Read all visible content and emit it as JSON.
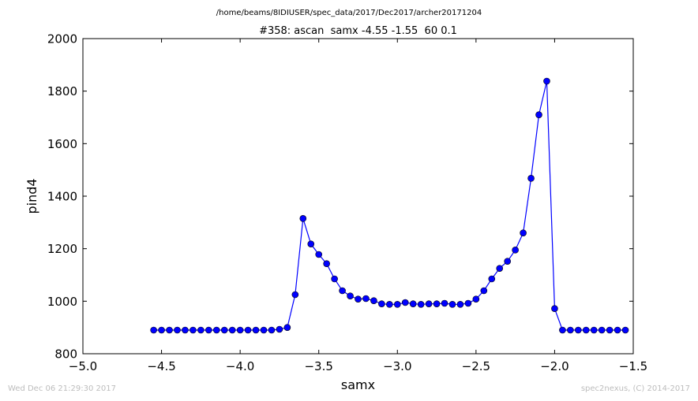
{
  "file_path": "/home/beams/8IDIUSER/spec_data/2017/Dec2017/archer20171204",
  "footer": {
    "timestamp": "Wed Dec 06 21:29:30 2017",
    "credit": "spec2nexus, (C) 2014-2017"
  },
  "chart_data": {
    "type": "line",
    "title": "#358: ascan  samx -4.55 -1.55  60 0.1",
    "xlabel": "samx",
    "ylabel": "pind4",
    "xlim": [
      -5.0,
      -1.5
    ],
    "ylim": [
      800,
      2000
    ],
    "xticks": [
      -5.0,
      -4.5,
      -4.0,
      -3.5,
      -3.0,
      -2.5,
      -2.0,
      -1.5
    ],
    "xtick_labels": [
      "−5.0",
      "−4.5",
      "−4.0",
      "−3.5",
      "−3.0",
      "−2.5",
      "−2.0",
      "−1.5"
    ],
    "yticks": [
      800,
      1000,
      1200,
      1400,
      1600,
      1800,
      2000
    ],
    "ytick_labels": [
      "800",
      "1000",
      "1200",
      "1400",
      "1600",
      "1800",
      "2000"
    ],
    "grid": false,
    "color": "#0000ff",
    "series": [
      {
        "x": [
          -4.55,
          -4.5,
          -4.45,
          -4.4,
          -4.35,
          -4.3,
          -4.25,
          -4.2,
          -4.15,
          -4.1,
          -4.05,
          -4.0,
          -3.95,
          -3.9,
          -3.85,
          -3.8,
          -3.75,
          -3.7,
          -3.65,
          -3.6,
          -3.55,
          -3.5,
          -3.45,
          -3.4,
          -3.35,
          -3.3,
          -3.25,
          -3.2,
          -3.15,
          -3.1,
          -3.05,
          -3.0,
          -2.95,
          -2.9,
          -2.85,
          -2.8,
          -2.75,
          -2.7,
          -2.65,
          -2.6,
          -2.55,
          -2.5,
          -2.45,
          -2.4,
          -2.35,
          -2.3,
          -2.25,
          -2.2,
          -2.15,
          -2.1,
          -2.05,
          -2.0,
          -1.95,
          -1.9,
          -1.85,
          -1.8,
          -1.75,
          -1.7,
          -1.65,
          -1.6,
          -1.55
        ],
        "y": [
          890,
          890,
          890,
          890,
          890,
          890,
          890,
          890,
          890,
          890,
          890,
          890,
          890,
          890,
          890,
          890,
          893,
          900,
          1025,
          1315,
          1218,
          1178,
          1143,
          1085,
          1040,
          1020,
          1008,
          1010,
          1002,
          990,
          988,
          988,
          995,
          990,
          988,
          990,
          990,
          992,
          988,
          988,
          992,
          1008,
          1040,
          1085,
          1125,
          1152,
          1195,
          1260,
          1468,
          1710,
          1838,
          972,
          890,
          890,
          890,
          890,
          890,
          890,
          890,
          890,
          890
        ]
      }
    ]
  }
}
